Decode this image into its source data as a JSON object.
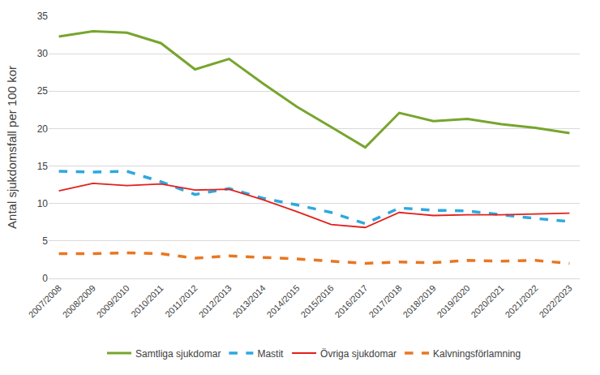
{
  "chart_data": {
    "type": "line",
    "y_label": "Antal sjukdomsfall per 100 kor",
    "categories": [
      "2007/2008",
      "2008/2009",
      "2009/2010",
      "2010/2011",
      "2011/2012",
      "2012/2013",
      "2013/2014",
      "2014/2015",
      "2015/2016",
      "2016/2017",
      "2017/2018",
      "2018/2019",
      "2019/2020",
      "2020/2021",
      "2021/2022",
      "2022/2023"
    ],
    "series": [
      {
        "name": "Samtliga sjukdomar",
        "color": "#77a52e",
        "line_style": "solid",
        "values": [
          32.3,
          33.0,
          32.8,
          31.4,
          27.9,
          29.3,
          26.0,
          22.9,
          20.2,
          17.5,
          22.1,
          21.0,
          21.3,
          20.6,
          20.1,
          19.4
        ]
      },
      {
        "name": "Mastit",
        "color": "#2ea8e0",
        "line_style": "dash",
        "values": [
          14.3,
          14.2,
          14.3,
          12.9,
          11.2,
          12.0,
          10.7,
          9.8,
          8.8,
          7.3,
          9.4,
          9.1,
          9.0,
          8.5,
          8.0,
          7.6
        ]
      },
      {
        "name": "Övriga sjukdomar",
        "color": "#e3201b",
        "line_style": "solid",
        "values": [
          11.7,
          12.7,
          12.4,
          12.6,
          11.8,
          11.9,
          10.5,
          8.9,
          7.2,
          6.8,
          8.8,
          8.4,
          8.5,
          8.5,
          8.6,
          8.7
        ]
      },
      {
        "name": "Kalvningsförlamning",
        "color": "#e87722",
        "line_style": "dash",
        "values": [
          3.3,
          3.3,
          3.4,
          3.3,
          2.7,
          3.0,
          2.8,
          2.6,
          2.3,
          2.0,
          2.2,
          2.1,
          2.4,
          2.3,
          2.4,
          2.0
        ]
      }
    ],
    "ylim": [
      0,
      35
    ],
    "yticks": [
      0,
      5,
      10,
      15,
      20,
      25,
      30,
      35
    ],
    "grid": true,
    "legend": "bottom"
  }
}
